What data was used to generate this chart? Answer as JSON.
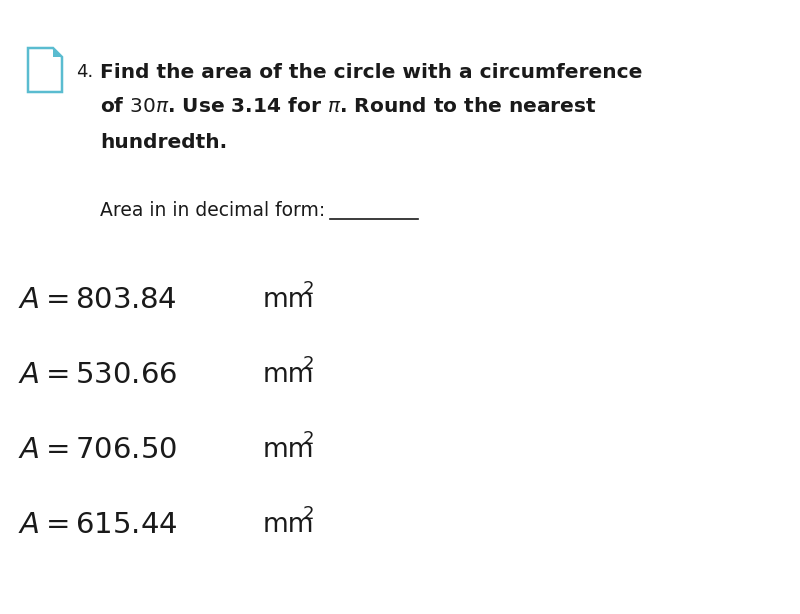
{
  "background_color": "#ffffff",
  "question_number": "4.",
  "q_line1": "Find the area of the circle with a circumference",
  "q_line2_pre": "of ",
  "q_line2_num": "30",
  "q_line2_pi": "π",
  "q_line2_post": ". Use 3.14 for ",
  "q_line2_pi2": "π",
  "q_line2_end": ". Round to the nearest",
  "q_line3": "hundredth.",
  "prompt_label": "Area in in decimal form: ",
  "prompt_line": "_______",
  "answers": [
    {
      "math": "A = 803.84",
      "unit": "mm²"
    },
    {
      "math": "A = 530.66",
      "unit": "mm²"
    },
    {
      "math": "A = 706.50",
      "unit": "mm²"
    },
    {
      "math": "A = 615.44",
      "unit": "mm²"
    }
  ],
  "icon_color": "#5abcd0",
  "text_color": "#1a1a1a",
  "bold_fontsize": 14.5,
  "prompt_fontsize": 13.5,
  "answer_fontsize": 21,
  "unit_fontsize": 19,
  "sup_fontsize": 13,
  "qnum_fontsize": 13
}
